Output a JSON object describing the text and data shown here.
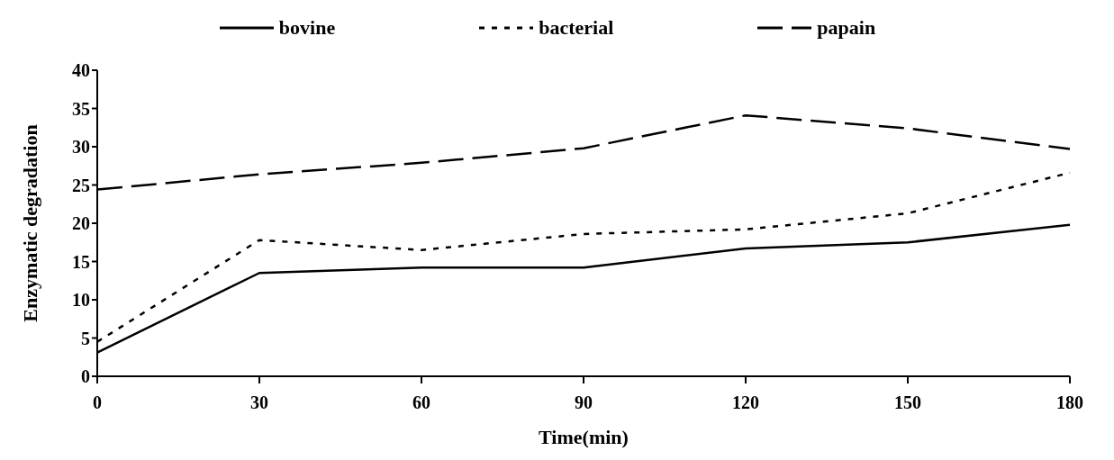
{
  "chart_data": {
    "type": "line",
    "xlabel": "Time(min)",
    "ylabel": "Enzymatic degradation",
    "categories": [
      "0",
      "30",
      "60",
      "90",
      "120",
      "150",
      "180"
    ],
    "series": [
      {
        "name": "bovine",
        "color": "#000000",
        "line_style": "solid",
        "values": [
          3.1,
          13.5,
          14.2,
          14.2,
          16.7,
          17.5,
          19.8
        ]
      },
      {
        "name": "bacterial",
        "color": "#000000",
        "line_style": "dotted",
        "values": [
          4.5,
          17.8,
          16.5,
          18.6,
          19.2,
          21.3,
          26.6
        ]
      },
      {
        "name": "papain",
        "color": "#000000",
        "line_style": "dashed",
        "values": [
          24.4,
          26.4,
          27.9,
          29.8,
          34.1,
          32.4,
          29.7
        ]
      }
    ],
    "ylim": [
      0,
      40
    ],
    "yticks": [
      0,
      5,
      10,
      15,
      20,
      25,
      30,
      35,
      40
    ],
    "grid": false,
    "legend": "top",
    "marker": "none"
  }
}
